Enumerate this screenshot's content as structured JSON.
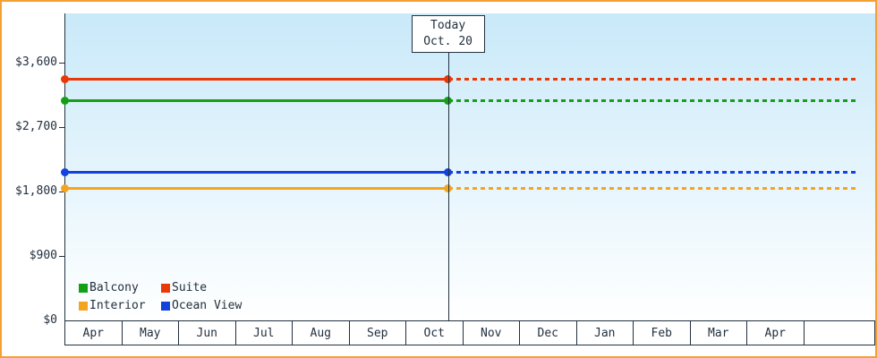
{
  "chart_data": {
    "type": "line",
    "title": "",
    "y_axis": {
      "ticks": [
        {
          "label": "$0",
          "value": 0
        },
        {
          "label": "$900",
          "value": 900
        },
        {
          "label": "$1,800",
          "value": 1800
        },
        {
          "label": "$2,700",
          "value": 2700
        },
        {
          "label": "$3,600",
          "value": 3600
        }
      ],
      "value_max": 4288,
      "ylim": [
        0,
        4288
      ]
    },
    "x_axis": {
      "months": [
        "Apr",
        "May",
        "Jun",
        "Jul",
        "Aug",
        "Sep",
        "Oct",
        "Nov",
        "Dec",
        "Jan",
        "Feb",
        "Mar",
        "Apr"
      ]
    },
    "today": {
      "label_line1": "Today",
      "label_line2": "Oct. 20",
      "month_index": 6,
      "day_fraction": 0.645
    },
    "series": [
      {
        "name": "Suite",
        "color": "#ea3807",
        "value": 3375
      },
      {
        "name": "Balcony",
        "color": "#14a014",
        "value": 3075
      },
      {
        "name": "Ocean View",
        "color": "#1442dd",
        "value": 2075
      },
      {
        "name": "Interior",
        "color": "#f4a520",
        "value": 1850
      }
    ],
    "legend": [
      {
        "label": "Balcony",
        "color": "#14a014"
      },
      {
        "label": "Suite",
        "color": "#ea3807"
      },
      {
        "label": "Interior",
        "color": "#f4a520"
      },
      {
        "label": "Ocean View",
        "color": "#1442dd"
      }
    ],
    "layout_hints": {
      "grid": "off",
      "legend_position": "bottom-left-inside",
      "solid_until_today": true,
      "dotted_after_today": true
    }
  },
  "colors": {
    "frame_border": "#f5a033",
    "axis": "#22303e",
    "text": "#22303e",
    "plot_top": "#c9e9f9",
    "plot_bottom": "#ffffff"
  }
}
